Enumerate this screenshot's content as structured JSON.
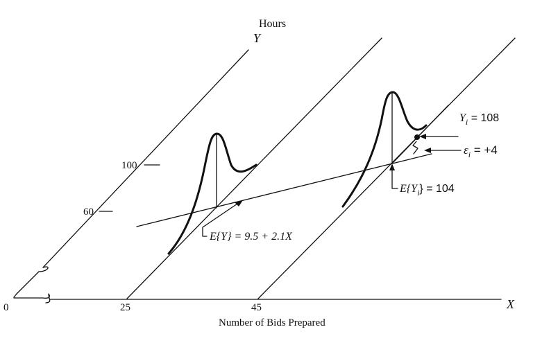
{
  "title": "Hours",
  "axes": {
    "y_letter": "Y",
    "x_letter": "X",
    "x_label": "Number of Bids Prepared",
    "x_ticks": [
      "0",
      "25",
      "45"
    ],
    "y_ticks": [
      "100",
      "60"
    ]
  },
  "annotations": {
    "regression": {
      "lhs": "E{Y} = 9.5 + 2.1",
      "var": "X"
    },
    "observed": {
      "sym": "Y",
      "sub": "i",
      "rhs": " = 108"
    },
    "error": {
      "sym": "ε",
      "sub": "i",
      "rhs": " = +4"
    },
    "mean": {
      "lead": "E{Y",
      "sub": "i",
      "rhs": "} = 104"
    }
  }
}
